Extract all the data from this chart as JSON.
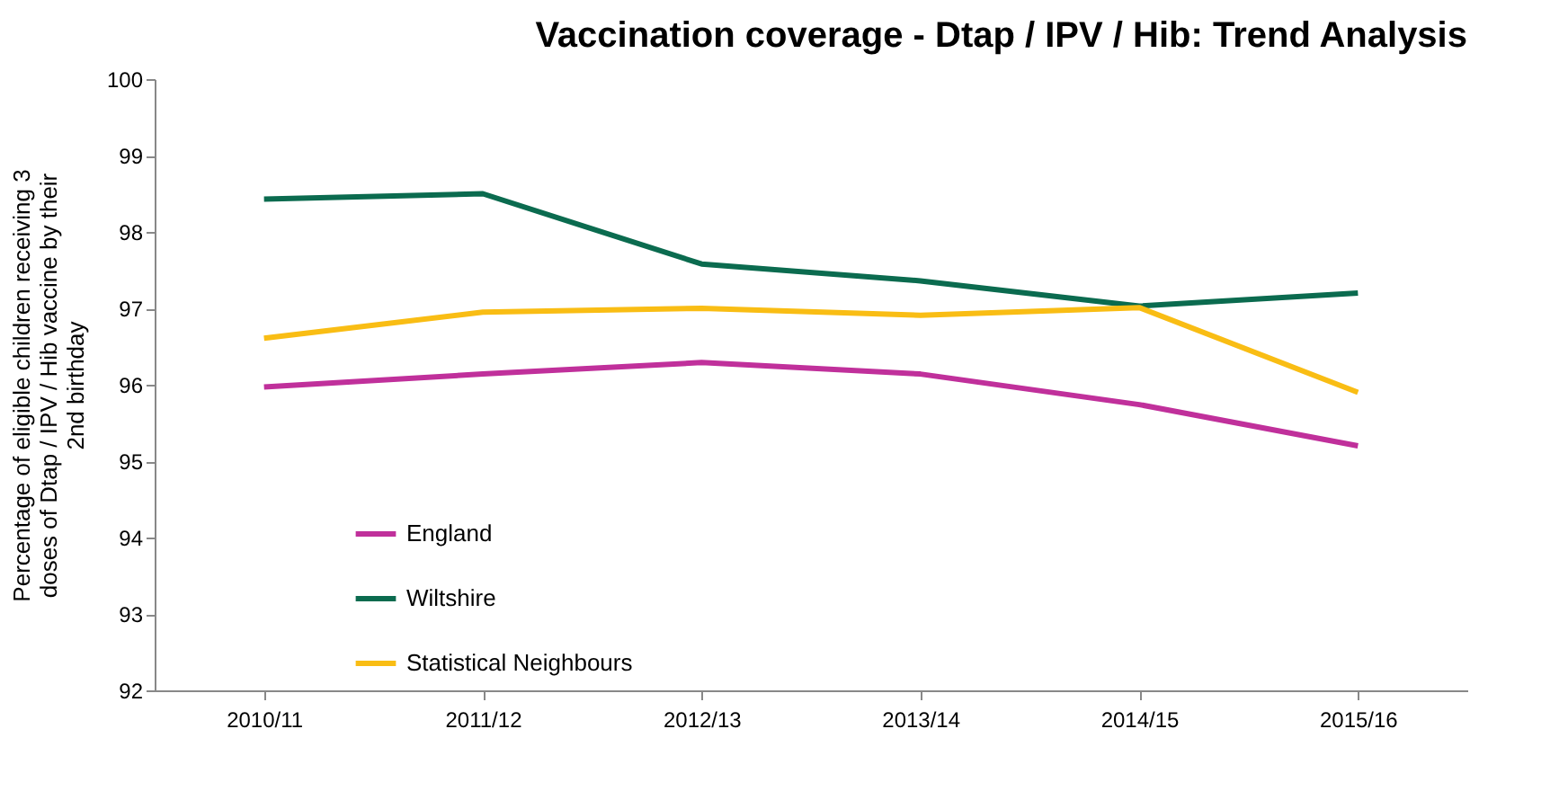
{
  "chart_data": {
    "type": "line",
    "title": "Vaccination coverage - Dtap / IPV / Hib: Trend Analysis",
    "ylabel": "Percentage of eligible children receiving 3 doses of Dtap / IPV / Hib vaccine by their 2nd birthday",
    "categories": [
      "2010/11",
      "2011/12",
      "2012/13",
      "2013/14",
      "2014/15",
      "2015/16"
    ],
    "series": [
      {
        "name": "England",
        "color": "#c0309b",
        "values": [
          95.97,
          96.14,
          96.29,
          96.14,
          95.74,
          95.2
        ]
      },
      {
        "name": "Wiltshire",
        "color": "#0b6b4f",
        "values": [
          98.43,
          98.5,
          97.58,
          97.36,
          97.03,
          97.2
        ]
      },
      {
        "name": "Statistical Neighbours",
        "color": "#f9bd14",
        "values": [
          96.61,
          96.95,
          97.0,
          96.91,
          97.01,
          95.9
        ]
      }
    ],
    "ylim": [
      92,
      100
    ],
    "yticks": [
      92,
      93,
      94,
      95,
      96,
      97,
      98,
      99,
      100
    ],
    "grid": false,
    "legend": "bottom left",
    "marker": "none",
    "line_style": "solid"
  }
}
